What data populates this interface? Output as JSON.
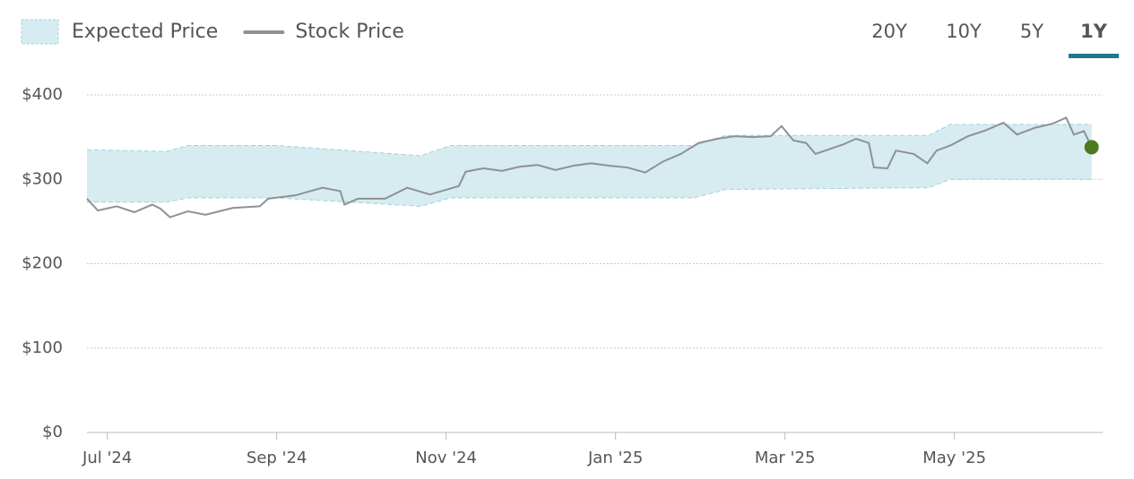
{
  "chart_data": {
    "type": "line",
    "range_buttons": [
      "20Y",
      "10Y",
      "5Y",
      "1Y"
    ],
    "active_range_index": 3,
    "active_color": "#1b7a8c",
    "grid": true,
    "ylim": [
      0,
      400
    ],
    "yticks": [
      {
        "value": 0,
        "label": "$0"
      },
      {
        "value": 100,
        "label": "$100"
      },
      {
        "value": 200,
        "label": "$200"
      },
      {
        "value": 300,
        "label": "$300"
      },
      {
        "value": 400,
        "label": "$400"
      }
    ],
    "xlim": [
      -0.24,
      11.75
    ],
    "xticks": [
      {
        "value": 0,
        "label": "Jul '24"
      },
      {
        "value": 2,
        "label": "Sep '24"
      },
      {
        "value": 4,
        "label": "Nov '24"
      },
      {
        "value": 6,
        "label": "Jan '25"
      },
      {
        "value": 8,
        "label": "Mar '25"
      },
      {
        "value": 10,
        "label": "May '25"
      }
    ],
    "series": [
      {
        "name": "Expected Price",
        "type": "range",
        "color": "#d6ecf1",
        "border_color": "#9fd3dd",
        "x": [
          -0.24,
          0.7,
          0.95,
          2.0,
          3.7,
          4.05,
          6.93,
          7.3,
          9.7,
          9.95,
          11.62
        ],
        "high": [
          335,
          333,
          340,
          340,
          328,
          340,
          340,
          352,
          352,
          365,
          365
        ],
        "low": [
          273,
          273,
          278,
          278,
          268,
          278,
          278,
          288,
          290,
          300,
          300
        ]
      },
      {
        "name": "Stock Price",
        "type": "line",
        "color": "#8e9196",
        "last_point_color": "#4a7c1f",
        "x": [
          -0.24,
          -0.11,
          0.11,
          0.32,
          0.53,
          0.63,
          0.74,
          0.95,
          1.16,
          1.48,
          1.8,
          1.9,
          2.22,
          2.54,
          2.75,
          2.8,
          2.96,
          3.28,
          3.54,
          3.81,
          4.15,
          4.23,
          4.44,
          4.66,
          4.87,
          5.08,
          5.29,
          5.5,
          5.71,
          5.93,
          6.14,
          6.35,
          6.56,
          6.77,
          6.98,
          7.2,
          7.41,
          7.62,
          7.83,
          7.96,
          8.1,
          8.25,
          8.36,
          8.68,
          8.84,
          8.99,
          9.05,
          9.21,
          9.31,
          9.52,
          9.68,
          9.79,
          9.95,
          10.16,
          10.37,
          10.58,
          10.74,
          10.95,
          11.16,
          11.32,
          11.41,
          11.53,
          11.62
        ],
        "values": [
          277,
          263,
          268,
          261,
          270,
          265,
          255,
          262,
          258,
          266,
          268,
          277,
          281,
          290,
          286,
          270,
          277,
          277,
          290,
          282,
          292,
          309,
          313,
          310,
          315,
          317,
          311,
          316,
          319,
          316,
          314,
          308,
          321,
          330,
          343,
          348,
          351,
          350,
          351,
          363,
          346,
          343,
          330,
          341,
          348,
          343,
          314,
          313,
          334,
          330,
          319,
          334,
          340,
          351,
          358,
          367,
          353,
          361,
          366,
          373,
          353,
          357,
          338
        ]
      }
    ]
  }
}
